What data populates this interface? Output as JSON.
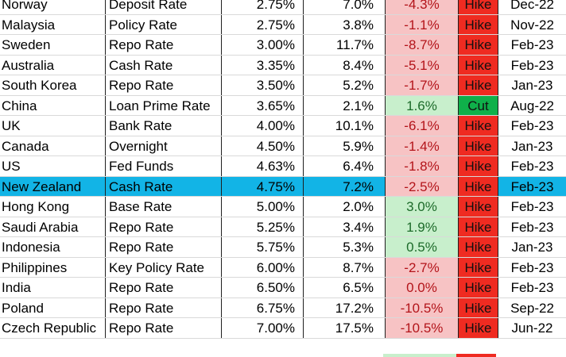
{
  "rows": [
    {
      "country": "Norway",
      "rate_type": "Deposit Rate",
      "policy_rate": "2.75%",
      "inflation": "7.0%",
      "real_rate": "-4.3%",
      "real_sign": "neg",
      "last_move": "Hike",
      "move_type": "hike",
      "date": "Dec-22"
    },
    {
      "country": "Malaysia",
      "rate_type": "Policy Rate",
      "policy_rate": "2.75%",
      "inflation": "3.8%",
      "real_rate": "-1.1%",
      "real_sign": "neg",
      "last_move": "Hike",
      "move_type": "hike",
      "date": "Nov-22"
    },
    {
      "country": "Sweden",
      "rate_type": "Repo Rate",
      "policy_rate": "3.00%",
      "inflation": "11.7%",
      "real_rate": "-8.7%",
      "real_sign": "neg",
      "last_move": "Hike",
      "move_type": "hike",
      "date": "Feb-23"
    },
    {
      "country": "Australia",
      "rate_type": "Cash Rate",
      "policy_rate": "3.35%",
      "inflation": "8.4%",
      "real_rate": "-5.1%",
      "real_sign": "neg",
      "last_move": "Hike",
      "move_type": "hike",
      "date": "Feb-23"
    },
    {
      "country": "South Korea",
      "rate_type": "Repo Rate",
      "policy_rate": "3.50%",
      "inflation": "5.2%",
      "real_rate": "-1.7%",
      "real_sign": "neg",
      "last_move": "Hike",
      "move_type": "hike",
      "date": "Jan-23"
    },
    {
      "country": "China",
      "rate_type": "Loan Prime Rate",
      "policy_rate": "3.65%",
      "inflation": "2.1%",
      "real_rate": "1.6%",
      "real_sign": "pos",
      "last_move": "Cut",
      "move_type": "cut",
      "date": "Aug-22"
    },
    {
      "country": "UK",
      "rate_type": "Bank Rate",
      "policy_rate": "4.00%",
      "inflation": "10.1%",
      "real_rate": "-6.1%",
      "real_sign": "neg",
      "last_move": "Hike",
      "move_type": "hike",
      "date": "Feb-23"
    },
    {
      "country": "Canada",
      "rate_type": "Overnight",
      "policy_rate": "4.50%",
      "inflation": "5.9%",
      "real_rate": "-1.4%",
      "real_sign": "neg",
      "last_move": "Hike",
      "move_type": "hike",
      "date": "Jan-23"
    },
    {
      "country": "US",
      "rate_type": "Fed Funds",
      "policy_rate": "4.63%",
      "inflation": "6.4%",
      "real_rate": "-1.8%",
      "real_sign": "neg",
      "last_move": "Hike",
      "move_type": "hike",
      "date": "Feb-23"
    },
    {
      "country": "New Zealand",
      "rate_type": "Cash Rate",
      "policy_rate": "4.75%",
      "inflation": "7.2%",
      "real_rate": "-2.5%",
      "real_sign": "neg",
      "last_move": "Hike",
      "move_type": "hike",
      "date": "Feb-23",
      "highlight": true
    },
    {
      "country": "Hong Kong",
      "rate_type": "Base Rate",
      "policy_rate": "5.00%",
      "inflation": "2.0%",
      "real_rate": "3.0%",
      "real_sign": "pos",
      "last_move": "Hike",
      "move_type": "hike",
      "date": "Feb-23"
    },
    {
      "country": "Saudi Arabia",
      "rate_type": "Repo Rate",
      "policy_rate": "5.25%",
      "inflation": "3.4%",
      "real_rate": "1.9%",
      "real_sign": "pos",
      "last_move": "Hike",
      "move_type": "hike",
      "date": "Feb-23"
    },
    {
      "country": "Indonesia",
      "rate_type": "Repo Rate",
      "policy_rate": "5.75%",
      "inflation": "5.3%",
      "real_rate": "0.5%",
      "real_sign": "pos",
      "last_move": "Hike",
      "move_type": "hike",
      "date": "Jan-23"
    },
    {
      "country": "Philippines",
      "rate_type": "Key Policy Rate",
      "policy_rate": "6.00%",
      "inflation": "8.7%",
      "real_rate": "-2.7%",
      "real_sign": "neg",
      "last_move": "Hike",
      "move_type": "hike",
      "date": "Feb-23"
    },
    {
      "country": "India",
      "rate_type": "Repo Rate",
      "policy_rate": "6.50%",
      "inflation": "6.5%",
      "real_rate": "0.0%",
      "real_sign": "neg",
      "last_move": "Hike",
      "move_type": "hike",
      "date": "Feb-23"
    },
    {
      "country": "Poland",
      "rate_type": "Repo Rate",
      "policy_rate": "6.75%",
      "inflation": "17.2%",
      "real_rate": "-10.5%",
      "real_sign": "neg",
      "last_move": "Hike",
      "move_type": "hike",
      "date": "Sep-22"
    },
    {
      "country": "Czech Republic",
      "rate_type": "Repo Rate",
      "policy_rate": "7.00%",
      "inflation": "17.5%",
      "real_rate": "-10.5%",
      "real_sign": "neg",
      "last_move": "Hike",
      "move_type": "hike",
      "date": "Jun-22"
    }
  ],
  "colors": {
    "highlight_row": "#12b4e6",
    "negative_fill": "#f7c3c4",
    "negative_text": "#b3141a",
    "positive_fill": "#c8efcc",
    "positive_text": "#1d6b2a",
    "hike_fill": "#ef2b21",
    "cut_fill": "#0fb04a"
  }
}
